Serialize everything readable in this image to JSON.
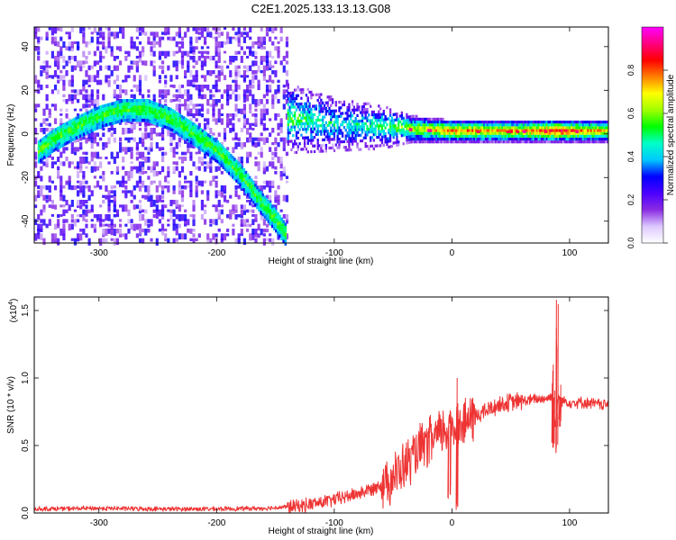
{
  "title": "C2E1.2025.133.13.13.G08",
  "chart_data": [
    {
      "type": "heatmap",
      "xlabel": "Height of straight line (km)",
      "ylabel": "Frequency (Hz)",
      "xlim": [
        -355,
        133
      ],
      "ylim": [
        -50,
        49
      ],
      "xticks": [
        -300,
        -200,
        -100,
        0,
        100
      ],
      "yticks": [
        -40,
        -20,
        0,
        20,
        40
      ],
      "colorbar": {
        "label": "Normalized spectral amplitude",
        "range": [
          0,
          1
        ],
        "ticks": [
          "0.0",
          "0.2",
          "0.4",
          "0.6",
          "0.8"
        ],
        "colors": [
          "#ffffff",
          "#dcc8ff",
          "#8a2be2",
          "#4b00ff",
          "#0000ff",
          "#00c8ff",
          "#00ffc8",
          "#00ff00",
          "#a0ff00",
          "#ffff00",
          "#ff8000",
          "#ff0000",
          "#ff0080",
          "#ff00ff"
        ]
      },
      "noise_region": {
        "x": [
          -355,
          -140
        ],
        "y": [
          -50,
          49
        ]
      },
      "track": [
        {
          "x": -352,
          "y": -8
        },
        {
          "x": -340,
          "y": -3
        },
        {
          "x": -320,
          "y": 3
        },
        {
          "x": -300,
          "y": 8
        },
        {
          "x": -280,
          "y": 11
        },
        {
          "x": -260,
          "y": 11
        },
        {
          "x": -240,
          "y": 7
        },
        {
          "x": -220,
          "y": 0
        },
        {
          "x": -200,
          "y": -8
        },
        {
          "x": -180,
          "y": -19
        },
        {
          "x": -165,
          "y": -30
        },
        {
          "x": -150,
          "y": -40
        },
        {
          "x": -142,
          "y": -46
        }
      ],
      "band": [
        {
          "x": -140,
          "y": 7,
          "halfwidth": 14,
          "amp": 0.55
        },
        {
          "x": -100,
          "y": 4,
          "halfwidth": 10,
          "amp": 0.45
        },
        {
          "x": -60,
          "y": 3,
          "halfwidth": 8,
          "amp": 0.5
        },
        {
          "x": -35,
          "y": 2,
          "halfwidth": 4,
          "amp": 0.65
        },
        {
          "x": 0,
          "y": 1,
          "halfwidth": 3,
          "amp": 0.8
        },
        {
          "x": 60,
          "y": 1,
          "halfwidth": 3,
          "amp": 0.75
        },
        {
          "x": 85,
          "y": 1,
          "halfwidth": 3,
          "amp": 0.9
        },
        {
          "x": 133,
          "y": 1,
          "halfwidth": 3,
          "amp": 0.7
        }
      ]
    },
    {
      "type": "line",
      "xlabel": "Height of straight line (km)",
      "ylabel": "SNR (10 * v/v)",
      "yscale_label": "(x10",
      "yscale_exp": "4",
      "yscale_close": ")",
      "xlim": [
        -355,
        133
      ],
      "ylim": [
        0,
        1.6
      ],
      "xticks": [
        -300,
        -200,
        -100,
        0,
        100
      ],
      "yticks": [
        "0.0",
        "0.5",
        "1.0",
        "1.5"
      ],
      "color": "#ee3333",
      "series": [
        {
          "x": [
            -355,
            -300,
            -250,
            -200,
            -160,
            -130,
            -110,
            -90,
            -70,
            -55,
            -45,
            -35,
            -25,
            -15,
            -5,
            0,
            5,
            10,
            20,
            30,
            40,
            50,
            60,
            70,
            80,
            85,
            88,
            90,
            92,
            95,
            100,
            110,
            120,
            133
          ],
          "y": [
            0.03,
            0.035,
            0.03,
            0.03,
            0.035,
            0.05,
            0.08,
            0.12,
            0.17,
            0.24,
            0.3,
            0.4,
            0.48,
            0.55,
            0.62,
            0.65,
            0.62,
            0.66,
            0.72,
            0.76,
            0.8,
            0.82,
            0.83,
            0.84,
            0.85,
            0.86,
            0.65,
            0.86,
            0.84,
            0.83,
            0.82,
            0.82,
            0.81,
            0.8
          ]
        }
      ],
      "spikes": [
        {
          "x": 5,
          "ylow": 0.0,
          "yhigh": 1.0
        },
        {
          "x": -2,
          "ylow": 0.1,
          "yhigh": 0.75
        },
        {
          "x": 86,
          "ylow": 0.45,
          "yhigh": 1.1
        },
        {
          "x": 89,
          "ylow": 0.42,
          "yhigh": 1.58
        },
        {
          "x": 91,
          "ylow": 0.6,
          "yhigh": 0.95
        }
      ]
    }
  ]
}
